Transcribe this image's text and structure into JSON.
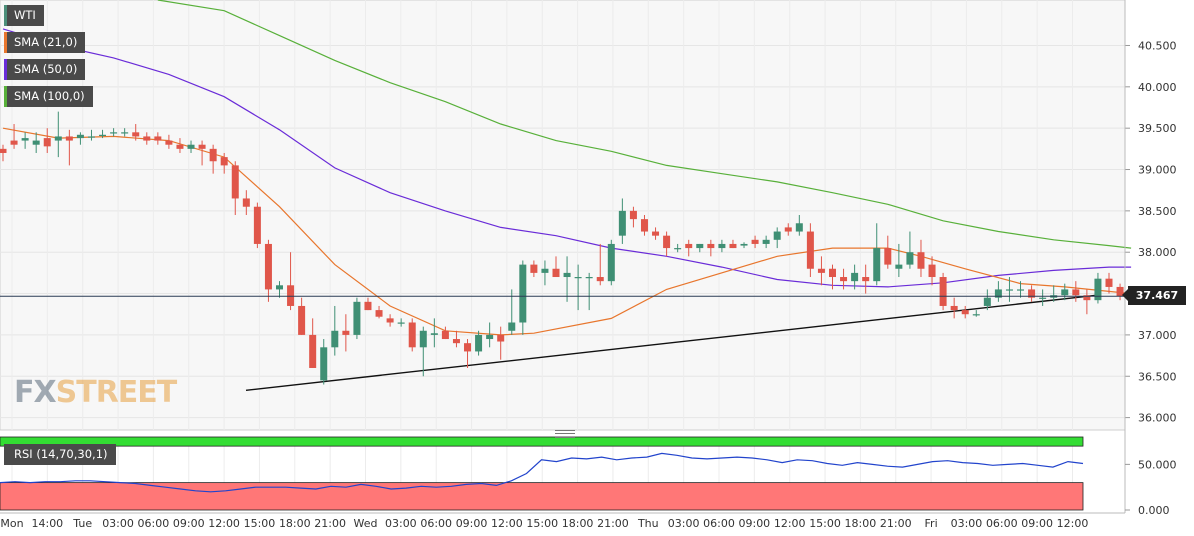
{
  "legend": {
    "wti": {
      "label": "WTI",
      "color": "#4c8f7a"
    },
    "sma21": {
      "label": "SMA (21,0)",
      "color": "#e8762d"
    },
    "sma50": {
      "label": "SMA (50,0)",
      "color": "#6a2cd8"
    },
    "sma100": {
      "label": "SMA (100,0)",
      "color": "#58b03a"
    }
  },
  "rsi": {
    "label": "RSI (14,70,30,1)",
    "overbought_color": "#33dd33",
    "oversold_color": "#ff7777",
    "line_color": "#2244cc"
  },
  "last_price": {
    "value": "37.467"
  },
  "brand": {
    "fx": "FX",
    "street": "STREET"
  },
  "chart_data": {
    "type": "candlestick",
    "title": "",
    "price_axis": {
      "labels": [
        "40.500",
        "40.000",
        "39.500",
        "39.000",
        "38.500",
        "38.000",
        "37.500",
        "37.000",
        "36.500",
        "36.000"
      ],
      "ylim": [
        35.85,
        41.05
      ]
    },
    "rsi_axis": {
      "labels": [
        "50.000",
        "0.000"
      ],
      "ylim": [
        0,
        80
      ]
    },
    "time_axis": {
      "labels": [
        "Mon",
        "14:00",
        "Tue",
        "03:00",
        "06:00",
        "09:00",
        "12:00",
        "15:00",
        "18:00",
        "21:00",
        "Wed",
        "03:00",
        "06:00",
        "09:00",
        "12:00",
        "15:00",
        "18:00",
        "21:00",
        "Thu",
        "03:00",
        "06:00",
        "09:00",
        "12:00",
        "15:00",
        "18:00",
        "21:00",
        "Fri",
        "03:00",
        "06:00",
        "09:00",
        "12:00"
      ]
    },
    "candles": [
      [
        39.25,
        39.3,
        39.1,
        39.2
      ],
      [
        39.35,
        39.55,
        39.25,
        39.3
      ],
      [
        39.35,
        39.45,
        39.25,
        39.38
      ],
      [
        39.3,
        39.45,
        39.2,
        39.35
      ],
      [
        39.38,
        39.5,
        39.2,
        39.28
      ],
      [
        39.35,
        39.7,
        39.15,
        39.4
      ],
      [
        39.4,
        39.48,
        39.05,
        39.35
      ],
      [
        39.38,
        39.45,
        39.3,
        39.42
      ],
      [
        39.4,
        39.48,
        39.35,
        39.4
      ],
      [
        39.42,
        39.48,
        39.38,
        39.42
      ],
      [
        39.45,
        39.5,
        39.4,
        39.45
      ],
      [
        39.45,
        39.5,
        39.4,
        39.45
      ],
      [
        39.45,
        39.55,
        39.35,
        39.4
      ],
      [
        39.4,
        39.45,
        39.3,
        39.35
      ],
      [
        39.4,
        39.45,
        39.3,
        39.35
      ],
      [
        39.35,
        39.42,
        39.25,
        39.3
      ],
      [
        39.3,
        39.38,
        39.2,
        39.25
      ],
      [
        39.25,
        39.35,
        39.2,
        39.3
      ],
      [
        39.3,
        39.35,
        39.05,
        39.25
      ],
      [
        39.25,
        39.3,
        38.95,
        39.1
      ],
      [
        39.15,
        39.2,
        38.95,
        39.05
      ],
      [
        39.05,
        39.1,
        38.45,
        38.65
      ],
      [
        38.65,
        38.75,
        38.45,
        38.55
      ],
      [
        38.55,
        38.6,
        38.05,
        38.1
      ],
      [
        38.1,
        38.15,
        37.4,
        37.55
      ],
      [
        37.55,
        37.65,
        37.45,
        37.6
      ],
      [
        37.6,
        38.0,
        37.3,
        37.35
      ],
      [
        37.35,
        37.45,
        37.0,
        37.0
      ],
      [
        37.0,
        37.2,
        36.6,
        36.6
      ],
      [
        36.45,
        36.95,
        36.4,
        36.85
      ],
      [
        36.85,
        37.35,
        36.75,
        37.05
      ],
      [
        37.05,
        37.25,
        36.8,
        37.0
      ],
      [
        37.0,
        37.45,
        36.95,
        37.4
      ],
      [
        37.4,
        37.45,
        37.3,
        37.3
      ],
      [
        37.3,
        37.35,
        37.2,
        37.22
      ],
      [
        37.2,
        37.25,
        37.1,
        37.15
      ],
      [
        37.15,
        37.2,
        37.1,
        37.15
      ],
      [
        37.15,
        37.2,
        36.8,
        36.85
      ],
      [
        36.85,
        37.1,
        36.5,
        37.05
      ],
      [
        37.0,
        37.2,
        36.85,
        37.02
      ],
      [
        37.05,
        37.1,
        36.95,
        36.95
      ],
      [
        36.95,
        37.05,
        36.85,
        36.9
      ],
      [
        36.9,
        36.95,
        36.6,
        36.8
      ],
      [
        36.8,
        37.05,
        36.75,
        37.0
      ],
      [
        36.95,
        37.15,
        36.85,
        37.0
      ],
      [
        37.0,
        37.1,
        36.7,
        36.92
      ],
      [
        37.05,
        37.55,
        37.0,
        37.15
      ],
      [
        37.15,
        37.9,
        37.0,
        37.85
      ],
      [
        37.85,
        37.9,
        37.7,
        37.75
      ],
      [
        37.75,
        37.9,
        37.6,
        37.8
      ],
      [
        37.8,
        37.95,
        37.7,
        37.7
      ],
      [
        37.7,
        37.95,
        37.4,
        37.75
      ],
      [
        37.7,
        37.85,
        37.3,
        37.7
      ],
      [
        37.7,
        37.75,
        37.3,
        37.7
      ],
      [
        37.7,
        38.1,
        37.6,
        37.65
      ],
      [
        37.65,
        38.15,
        37.6,
        38.1
      ],
      [
        38.2,
        38.65,
        38.1,
        38.5
      ],
      [
        38.5,
        38.55,
        38.3,
        38.4
      ],
      [
        38.4,
        38.45,
        38.2,
        38.25
      ],
      [
        38.25,
        38.3,
        38.15,
        38.2
      ],
      [
        38.2,
        38.25,
        37.95,
        38.05
      ],
      [
        38.05,
        38.1,
        38.0,
        38.05
      ],
      [
        38.1,
        38.15,
        37.95,
        38.05
      ],
      [
        38.05,
        38.1,
        38.0,
        38.1
      ],
      [
        38.1,
        38.15,
        37.95,
        38.05
      ],
      [
        38.05,
        38.15,
        38.0,
        38.1
      ],
      [
        38.1,
        38.15,
        38.05,
        38.05
      ],
      [
        38.08,
        38.12,
        38.05,
        38.1
      ],
      [
        38.15,
        38.2,
        38.05,
        38.1
      ],
      [
        38.1,
        38.2,
        38.05,
        38.15
      ],
      [
        38.15,
        38.3,
        38.05,
        38.25
      ],
      [
        38.3,
        38.35,
        38.2,
        38.25
      ],
      [
        38.25,
        38.45,
        38.2,
        38.35
      ],
      [
        38.25,
        38.35,
        37.7,
        37.8
      ],
      [
        37.8,
        37.95,
        37.6,
        37.75
      ],
      [
        37.8,
        37.85,
        37.55,
        37.7
      ],
      [
        37.7,
        37.8,
        37.55,
        37.65
      ],
      [
        37.65,
        37.85,
        37.55,
        37.75
      ],
      [
        37.7,
        37.85,
        37.5,
        37.65
      ],
      [
        37.65,
        38.35,
        37.6,
        38.05
      ],
      [
        38.05,
        38.2,
        37.8,
        37.85
      ],
      [
        37.8,
        38.1,
        37.7,
        37.85
      ],
      [
        37.85,
        38.25,
        37.8,
        38.0
      ],
      [
        38.0,
        38.15,
        37.7,
        37.8
      ],
      [
        37.85,
        37.95,
        37.6,
        37.7
      ],
      [
        37.7,
        37.75,
        37.3,
        37.35
      ],
      [
        37.35,
        37.45,
        37.2,
        37.3
      ],
      [
        37.3,
        37.35,
        37.2,
        37.25
      ],
      [
        37.25,
        37.3,
        37.22,
        37.25
      ],
      [
        37.35,
        37.55,
        37.3,
        37.45
      ],
      [
        37.45,
        37.65,
        37.4,
        37.55
      ],
      [
        37.55,
        37.7,
        37.4,
        37.55
      ],
      [
        37.55,
        37.65,
        37.45,
        37.55
      ],
      [
        37.55,
        37.6,
        37.4,
        37.45
      ],
      [
        37.45,
        37.55,
        37.35,
        37.45
      ],
      [
        37.45,
        37.6,
        37.4,
        37.48
      ],
      [
        37.48,
        37.62,
        37.42,
        37.55
      ],
      [
        37.55,
        37.65,
        37.4,
        37.48
      ],
      [
        37.48,
        37.55,
        37.25,
        37.42
      ],
      [
        37.42,
        37.75,
        37.38,
        37.68
      ],
      [
        37.68,
        37.75,
        37.5,
        37.58
      ],
      [
        37.58,
        37.62,
        37.42,
        37.467
      ]
    ],
    "sma21": [
      [
        0,
        39.5
      ],
      [
        5,
        39.38
      ],
      [
        10,
        39.4
      ],
      [
        15,
        39.35
      ],
      [
        20,
        39.15
      ],
      [
        25,
        38.55
      ],
      [
        30,
        37.85
      ],
      [
        35,
        37.35
      ],
      [
        40,
        37.05
      ],
      [
        45,
        37.0
      ],
      [
        48,
        37.02
      ],
      [
        55,
        37.2
      ],
      [
        60,
        37.55
      ],
      [
        70,
        37.95
      ],
      [
        75,
        38.05
      ],
      [
        80,
        38.05
      ],
      [
        83,
        37.95
      ],
      [
        87,
        37.8
      ],
      [
        92,
        37.62
      ],
      [
        96,
        37.58
      ],
      [
        102,
        37.5
      ]
    ],
    "sma50": [
      [
        0,
        40.7
      ],
      [
        5,
        40.5
      ],
      [
        10,
        40.35
      ],
      [
        15,
        40.15
      ],
      [
        20,
        39.88
      ],
      [
        25,
        39.48
      ],
      [
        30,
        39.02
      ],
      [
        35,
        38.72
      ],
      [
        40,
        38.5
      ],
      [
        45,
        38.3
      ],
      [
        50,
        38.2
      ],
      [
        55,
        38.05
      ],
      [
        60,
        37.95
      ],
      [
        65,
        37.82
      ],
      [
        70,
        37.67
      ],
      [
        75,
        37.6
      ],
      [
        80,
        37.58
      ],
      [
        85,
        37.63
      ],
      [
        90,
        37.72
      ],
      [
        95,
        37.78
      ],
      [
        100,
        37.82
      ],
      [
        102,
        37.82
      ]
    ],
    "sma100": [
      [
        14,
        41.05
      ],
      [
        20,
        40.92
      ],
      [
        25,
        40.62
      ],
      [
        30,
        40.32
      ],
      [
        35,
        40.05
      ],
      [
        40,
        39.82
      ],
      [
        45,
        39.55
      ],
      [
        50,
        39.35
      ],
      [
        55,
        39.22
      ],
      [
        60,
        39.05
      ],
      [
        65,
        38.95
      ],
      [
        70,
        38.85
      ],
      [
        75,
        38.72
      ],
      [
        80,
        38.58
      ],
      [
        85,
        38.38
      ],
      [
        90,
        38.25
      ],
      [
        95,
        38.15
      ],
      [
        100,
        38.08
      ],
      [
        102,
        38.05
      ]
    ],
    "trendline": [
      [
        36.33,
        246
      ],
      [
        37.48,
        1097
      ]
    ],
    "rsi": [
      30,
      31,
      30,
      31,
      31,
      32,
      32,
      31,
      30,
      29,
      27,
      25,
      23,
      21,
      20,
      21,
      23,
      25,
      25,
      25,
      24,
      23,
      26,
      25,
      28,
      26,
      23,
      24,
      26,
      25,
      26,
      28,
      29,
      27,
      32,
      40,
      55,
      53,
      57,
      56,
      58,
      55,
      57,
      58,
      62,
      60,
      57,
      56,
      57,
      58,
      57,
      55,
      52,
      55,
      54,
      51,
      49,
      52,
      50,
      48,
      47,
      50,
      53,
      54,
      52,
      51,
      49,
      50,
      51,
      49,
      47,
      53,
      51
    ],
    "rsi_levels": {
      "overbought": 70,
      "oversold": 30
    }
  }
}
